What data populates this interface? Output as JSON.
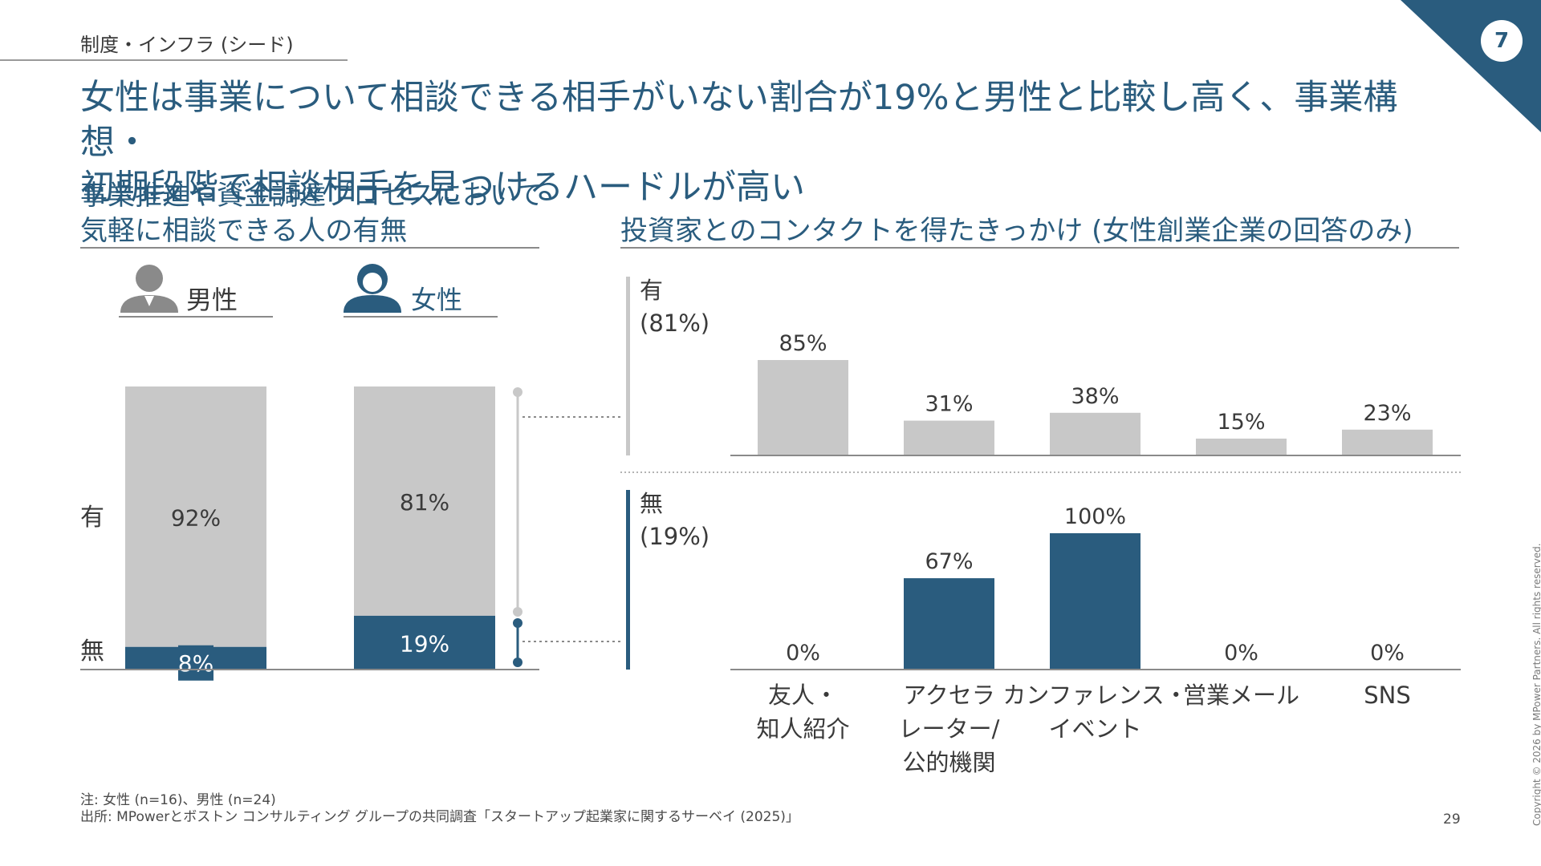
{
  "header": {
    "breadcrumb": "制度・インフラ (シード)",
    "page_badge": "7",
    "title_line1": "女性は事業について相談できる相手がいない割合が19%と男性と比較し高く、事業構想・",
    "title_line2": "初期段階で相談相手を見つけるハードルが高い"
  },
  "colors": {
    "accent": "#2a5c7e",
    "grey_bar": "#c8c8c8",
    "text": "#3a3a3a"
  },
  "left_section": {
    "title_line1": "事業推進や資金調達プロセスにおいて",
    "title_line2": "気軽に相談できる人の有無",
    "icons": {
      "male": "male-person-icon",
      "female": "female-person-icon"
    }
  },
  "right_section": {
    "title": "投資家とのコンタクトを得たきっかけ (女性創業企業の回答のみ)"
  },
  "chart_data": [
    {
      "type": "bar",
      "stacked": true,
      "title": "事業推進や資金調達プロセスにおいて気軽に相談できる人の有無",
      "categories": [
        "男性",
        "女性"
      ],
      "row_labels": [
        "有",
        "無"
      ],
      "series": [
        {
          "name": "有",
          "values": [
            92,
            81
          ],
          "labels": [
            "92%",
            "81%"
          ]
        },
        {
          "name": "無",
          "values": [
            8,
            19
          ],
          "labels": [
            "8%",
            "19%"
          ]
        }
      ],
      "ylim": [
        0,
        100
      ]
    },
    {
      "type": "bar",
      "title": "投資家とのコンタクトを得たきっかけ (女性創業企業の回答のみ)",
      "categories": [
        "友人・\n知人紹介",
        "アクセラ\nレーター/\n公的機関",
        "カンファレンス・\nイベント",
        "営業メール",
        "SNS"
      ],
      "panels": [
        {
          "label": "有",
          "sub": "(81%)",
          "values": [
            85,
            31,
            38,
            15,
            23
          ],
          "labels": [
            "85%",
            "31%",
            "38%",
            "15%",
            "23%"
          ]
        },
        {
          "label": "無",
          "sub": "(19%)",
          "values": [
            0,
            67,
            100,
            0,
            0
          ],
          "labels": [
            "0%",
            "67%",
            "100%",
            "0%",
            "0%"
          ]
        }
      ],
      "ylim": [
        0,
        100
      ]
    }
  ],
  "footer": {
    "note_line1": "注: 女性 (n=16)、男性 (n=24)",
    "note_line2": "出所: MPowerとボストン コンサルティング グループの共同調査「スタートアップ起業家に関するサーベイ (2025)」",
    "page_number": "29",
    "copyright": "Copyright © 2026 by MPower Partners. All rights reserved."
  }
}
